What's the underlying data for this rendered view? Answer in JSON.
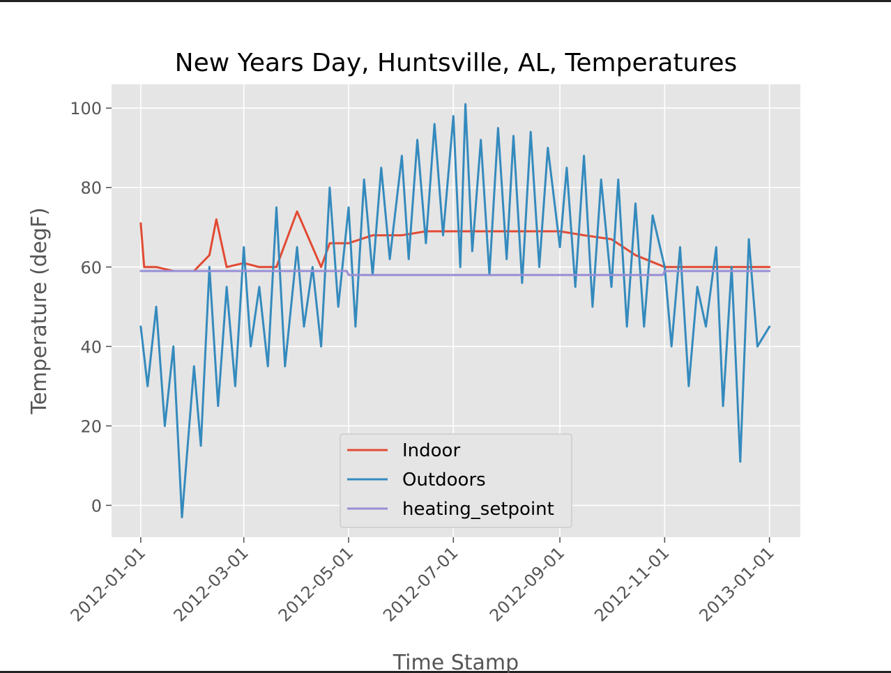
{
  "chart_data": {
    "type": "line",
    "title": "New Years Day, Huntsville, AL, Temperatures",
    "xlabel": "Time Stamp",
    "ylabel": "Temperature (degF)",
    "x_ticks": [
      "2012-01-01",
      "2012-03-01",
      "2012-05-01",
      "2012-07-01",
      "2012-09-01",
      "2012-11-01",
      "2013-01-01"
    ],
    "y_ticks": [
      0,
      20,
      40,
      60,
      80,
      100
    ],
    "xlim": [
      "2011-12-15",
      "2013-01-19"
    ],
    "ylim": [
      -8,
      106
    ],
    "grid": true,
    "legend_position": "lower-center",
    "colors": {
      "Indoor": "#E24A33",
      "Outdoors": "#348ABD",
      "heating_setpoint": "#988ED5",
      "panel_bg": "#E5E5E5",
      "grid": "#FFFFFF"
    },
    "series": [
      {
        "name": "Indoor",
        "x": [
          "2012-01-01",
          "2012-01-03",
          "2012-01-10",
          "2012-01-20",
          "2012-02-01",
          "2012-02-10",
          "2012-02-14",
          "2012-02-20",
          "2012-03-01",
          "2012-03-10",
          "2012-03-20",
          "2012-04-01",
          "2012-04-15",
          "2012-04-20",
          "2012-05-01",
          "2012-05-15",
          "2012-06-01",
          "2012-06-15",
          "2012-07-01",
          "2012-07-15",
          "2012-08-01",
          "2012-08-15",
          "2012-09-01",
          "2012-09-15",
          "2012-10-01",
          "2012-10-15",
          "2012-11-01",
          "2012-11-15",
          "2012-12-01",
          "2012-12-15",
          "2013-01-01"
        ],
        "values": [
          71,
          60,
          60,
          59,
          59,
          63,
          72,
          60,
          61,
          60,
          60,
          74,
          60,
          66,
          66,
          68,
          68,
          69,
          69,
          69,
          69,
          69,
          69,
          68,
          67,
          63,
          60,
          60,
          60,
          60,
          60
        ]
      },
      {
        "name": "Outdoors",
        "x": [
          "2012-01-01",
          "2012-01-05",
          "2012-01-10",
          "2012-01-15",
          "2012-01-20",
          "2012-01-25",
          "2012-02-01",
          "2012-02-05",
          "2012-02-10",
          "2012-02-15",
          "2012-02-20",
          "2012-02-25",
          "2012-03-01",
          "2012-03-05",
          "2012-03-10",
          "2012-03-15",
          "2012-03-20",
          "2012-03-25",
          "2012-04-01",
          "2012-04-05",
          "2012-04-10",
          "2012-04-15",
          "2012-04-20",
          "2012-04-25",
          "2012-05-01",
          "2012-05-05",
          "2012-05-10",
          "2012-05-15",
          "2012-05-20",
          "2012-05-25",
          "2012-06-01",
          "2012-06-05",
          "2012-06-10",
          "2012-06-15",
          "2012-06-20",
          "2012-06-25",
          "2012-07-01",
          "2012-07-05",
          "2012-07-08",
          "2012-07-12",
          "2012-07-17",
          "2012-07-22",
          "2012-07-27",
          "2012-08-01",
          "2012-08-05",
          "2012-08-10",
          "2012-08-15",
          "2012-08-20",
          "2012-08-25",
          "2012-09-01",
          "2012-09-05",
          "2012-09-10",
          "2012-09-15",
          "2012-09-20",
          "2012-09-25",
          "2012-10-01",
          "2012-10-05",
          "2012-10-10",
          "2012-10-15",
          "2012-10-20",
          "2012-10-25",
          "2012-11-01",
          "2012-11-05",
          "2012-11-10",
          "2012-11-15",
          "2012-11-20",
          "2012-11-25",
          "2012-12-01",
          "2012-12-05",
          "2012-12-10",
          "2012-12-15",
          "2012-12-20",
          "2012-12-25",
          "2013-01-01"
        ],
        "values": [
          45,
          30,
          50,
          20,
          40,
          -3,
          35,
          15,
          60,
          25,
          55,
          30,
          65,
          40,
          55,
          35,
          75,
          35,
          65,
          45,
          60,
          40,
          80,
          50,
          75,
          45,
          82,
          58,
          85,
          62,
          88,
          62,
          92,
          66,
          96,
          68,
          98,
          60,
          101,
          64,
          92,
          58,
          95,
          62,
          93,
          56,
          94,
          60,
          90,
          65,
          85,
          55,
          88,
          50,
          82,
          55,
          82,
          45,
          76,
          45,
          73,
          60,
          40,
          65,
          30,
          55,
          45,
          65,
          25,
          60,
          11,
          67,
          40,
          45
        ]
      },
      {
        "name": "heating_setpoint",
        "x": [
          "2012-01-01",
          "2012-04-30",
          "2012-05-01",
          "2012-10-31",
          "2012-11-01",
          "2013-01-01"
        ],
        "values": [
          59,
          59,
          58,
          58,
          59,
          59
        ]
      }
    ]
  }
}
